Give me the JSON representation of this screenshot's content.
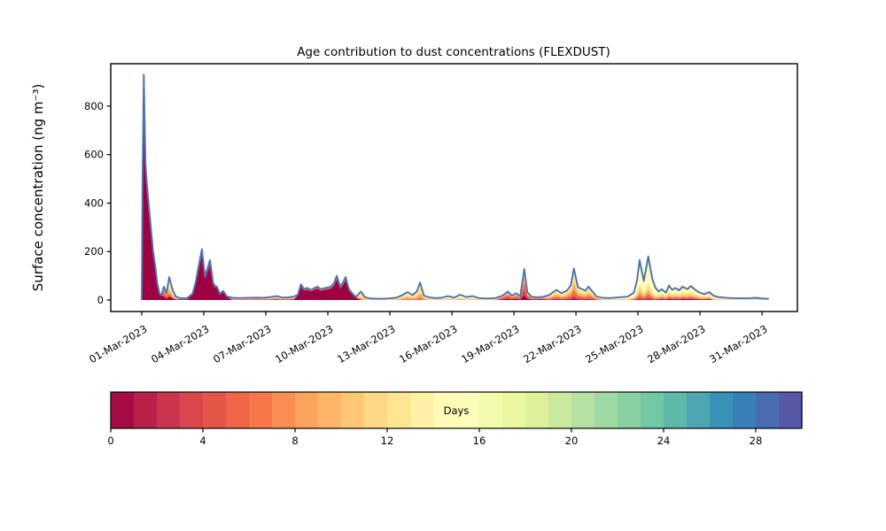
{
  "figure": {
    "background": "#ffffff"
  },
  "chart_data": {
    "type": "area",
    "title": "Age contribution to dust concentrations (FLEXDUST)",
    "ylabel": "Surface concentration (ng m⁻³)",
    "xlabel": "",
    "grid": false,
    "ylim": [
      -47.5,
      975
    ],
    "yticks": [
      0,
      200,
      400,
      600,
      800
    ],
    "xlim_days": [
      -0.5,
      32.71
    ],
    "xticks": [
      {
        "day": 1,
        "label": "01-Mar-2023"
      },
      {
        "day": 4,
        "label": "04-Mar-2023"
      },
      {
        "day": 7,
        "label": "07-Mar-2023"
      },
      {
        "day": 10,
        "label": "10-Mar-2023"
      },
      {
        "day": 13,
        "label": "13-Mar-2023"
      },
      {
        "day": 16,
        "label": "16-Mar-2023"
      },
      {
        "day": 19,
        "label": "19-Mar-2023"
      },
      {
        "day": 22,
        "label": "22-Mar-2023"
      },
      {
        "day": 25,
        "label": "25-Mar-2023"
      },
      {
        "day": 28,
        "label": "28-Mar-2023"
      },
      {
        "day": 31,
        "label": "31-Mar-2023"
      }
    ],
    "total_line": {
      "name": "total surface concentration",
      "color": "#4c72b0",
      "width": 1.9
    },
    "age_layers": [
      {
        "name": "age 0-3 days",
        "color": "#9e0142"
      },
      {
        "name": "age 3-6 days",
        "color": "#d53e4f"
      },
      {
        "name": "age 6-9 days",
        "color": "#f46d43"
      },
      {
        "name": "age 9-12 days",
        "color": "#fdae61"
      },
      {
        "name": "age 12-15 days",
        "color": "#fee08b"
      },
      {
        "name": "age 15-18 days",
        "color": "#ffffbf"
      },
      {
        "name": "age 18-21 days",
        "color": "#e6f598"
      },
      {
        "name": "age 21-24 days",
        "color": "#abdda4"
      }
    ],
    "x_days": [
      1.0,
      1.04,
      1.1,
      1.18,
      1.25,
      1.35,
      1.45,
      1.55,
      1.65,
      1.75,
      1.86,
      1.95,
      2.07,
      2.2,
      2.33,
      2.5,
      2.65,
      2.9,
      3.2,
      3.45,
      3.6,
      3.75,
      3.91,
      4.05,
      4.18,
      4.3,
      4.45,
      4.55,
      4.64,
      4.78,
      4.94,
      5.1,
      5.35,
      5.7,
      6.1,
      6.5,
      6.9,
      7.3,
      7.55,
      7.8,
      8.1,
      8.35,
      8.55,
      8.7,
      8.85,
      9.0,
      9.2,
      9.35,
      9.5,
      9.65,
      9.8,
      10.0,
      10.15,
      10.3,
      10.43,
      10.6,
      10.75,
      10.86,
      11.0,
      11.15,
      11.35,
      11.6,
      11.8,
      12.1,
      12.5,
      12.9,
      13.3,
      13.6,
      13.86,
      14.1,
      14.3,
      14.46,
      14.65,
      14.9,
      15.2,
      15.5,
      15.8,
      16.1,
      16.4,
      16.7,
      17.0,
      17.3,
      17.7,
      18.1,
      18.45,
      18.7,
      18.9,
      19.1,
      19.3,
      19.5,
      19.65,
      19.85,
      20.1,
      20.4,
      20.7,
      21.06,
      21.3,
      21.55,
      21.75,
      21.9,
      22.1,
      22.3,
      22.45,
      22.6,
      22.8,
      23.0,
      23.3,
      23.6,
      23.9,
      24.2,
      24.5,
      24.8,
      24.95,
      25.08,
      25.28,
      25.5,
      25.7,
      25.85,
      26.0,
      26.15,
      26.35,
      26.5,
      26.65,
      26.8,
      27.0,
      27.15,
      27.4,
      27.55,
      27.8,
      28.0,
      28.2,
      28.45,
      28.65,
      28.9,
      29.2,
      29.5,
      29.9,
      30.3,
      30.7,
      31.0,
      31.3
    ],
    "total": [
      3,
      500,
      930,
      560,
      480,
      380,
      290,
      200,
      140,
      70,
      25,
      20,
      55,
      28,
      95,
      40,
      14,
      7,
      8,
      25,
      70,
      140,
      210,
      100,
      130,
      165,
      70,
      58,
      55,
      25,
      38,
      16,
      10,
      8,
      9,
      10,
      9,
      13,
      16,
      10,
      11,
      14,
      22,
      65,
      45,
      50,
      42,
      50,
      55,
      44,
      48,
      52,
      55,
      70,
      100,
      55,
      75,
      95,
      48,
      30,
      12,
      35,
      11,
      6,
      5,
      6,
      9,
      20,
      33,
      20,
      35,
      72,
      18,
      11,
      8,
      9,
      16,
      10,
      22,
      12,
      16,
      8,
      6,
      8,
      18,
      35,
      18,
      28,
      15,
      128,
      32,
      14,
      11,
      13,
      20,
      42,
      28,
      38,
      60,
      130,
      52,
      45,
      38,
      55,
      35,
      14,
      9,
      8,
      10,
      12,
      14,
      30,
      80,
      165,
      78,
      180,
      85,
      50,
      35,
      45,
      30,
      60,
      42,
      50,
      40,
      55,
      45,
      58,
      40,
      30,
      24,
      33,
      18,
      12,
      10,
      8,
      7,
      7,
      9,
      6,
      5
    ],
    "age_fractions_segments": [
      {
        "from": 1.0,
        "to": 1.98,
        "fractions": [
          0.92,
          0.05,
          0.01,
          0.01,
          0.005,
          0.005,
          0,
          0
        ]
      },
      {
        "from": 1.98,
        "to": 2.25,
        "fractions": [
          0.25,
          0.1,
          0.35,
          0.15,
          0.1,
          0.05,
          0,
          0
        ]
      },
      {
        "from": 2.25,
        "to": 2.75,
        "fractions": [
          0.15,
          0.05,
          0.1,
          0.15,
          0.35,
          0.2,
          0,
          0
        ]
      },
      {
        "from": 2.75,
        "to": 3.4,
        "fractions": [
          0.3,
          0.1,
          0.15,
          0.15,
          0.2,
          0.1,
          0,
          0
        ]
      },
      {
        "from": 3.4,
        "to": 5.2,
        "fractions": [
          0.88,
          0.06,
          0.02,
          0.01,
          0.02,
          0.01,
          0,
          0
        ]
      },
      {
        "from": 5.2,
        "to": 8.45,
        "fractions": [
          0.12,
          0.08,
          0.18,
          0.17,
          0.25,
          0.15,
          0.05,
          0
        ]
      },
      {
        "from": 8.45,
        "to": 11.4,
        "fractions": [
          0.85,
          0.05,
          0.03,
          0.03,
          0.02,
          0.02,
          0,
          0
        ]
      },
      {
        "from": 11.4,
        "to": 12.2,
        "fractions": [
          0.02,
          0.02,
          0.06,
          0.2,
          0.5,
          0.15,
          0.05,
          0
        ]
      },
      {
        "from": 12.2,
        "to": 13.35,
        "fractions": [
          0,
          0,
          0.05,
          0.1,
          0.3,
          0.35,
          0.15,
          0.05
        ]
      },
      {
        "from": 13.35,
        "to": 14.85,
        "fractions": [
          0.01,
          0.03,
          0.12,
          0.25,
          0.35,
          0.18,
          0.05,
          0.01
        ]
      },
      {
        "from": 14.85,
        "to": 18.3,
        "fractions": [
          0,
          0.02,
          0.06,
          0.12,
          0.25,
          0.35,
          0.15,
          0.05
        ]
      },
      {
        "from": 18.3,
        "to": 20.5,
        "fractions": [
          0.15,
          0.2,
          0.25,
          0.18,
          0.14,
          0.06,
          0.02,
          0
        ]
      },
      {
        "from": 20.5,
        "to": 23.1,
        "fractions": [
          0.05,
          0.1,
          0.18,
          0.22,
          0.28,
          0.12,
          0.04,
          0.01
        ]
      },
      {
        "from": 23.1,
        "to": 24.75,
        "fractions": [
          0,
          0.02,
          0.05,
          0.1,
          0.2,
          0.4,
          0.17,
          0.06
        ]
      },
      {
        "from": 24.75,
        "to": 25.95,
        "fractions": [
          0.02,
          0.04,
          0.08,
          0.1,
          0.16,
          0.4,
          0.14,
          0.06
        ]
      },
      {
        "from": 25.95,
        "to": 28.6,
        "fractions": [
          0.07,
          0.07,
          0.1,
          0.13,
          0.25,
          0.23,
          0.1,
          0.05
        ]
      },
      {
        "from": 28.6,
        "to": 31.35,
        "fractions": [
          0.01,
          0.02,
          0.05,
          0.08,
          0.15,
          0.25,
          0.24,
          0.2
        ]
      }
    ],
    "colorbar": {
      "label": "Days",
      "ticks": [
        0,
        4,
        8,
        12,
        16,
        20,
        24,
        28
      ],
      "range": [
        0,
        30
      ],
      "n_segments": 30,
      "colormap": "Spectral",
      "colormap_anchors": [
        "#9e0142",
        "#d53e4f",
        "#f46d43",
        "#fdae61",
        "#fee08b",
        "#ffffbf",
        "#e6f598",
        "#abdda4",
        "#66c2a5",
        "#3288bd",
        "#5e4fa2"
      ]
    }
  }
}
